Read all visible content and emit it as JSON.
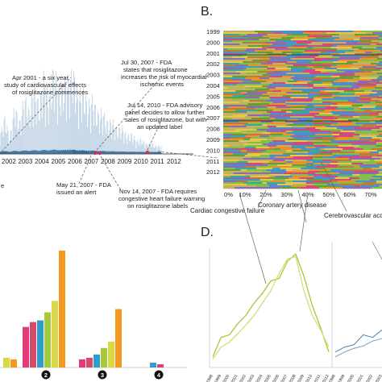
{
  "panels": {
    "b_letter": "B.",
    "d_letter": "D."
  },
  "chart_data": [
    {
      "panel": "A",
      "type": "bar",
      "title": "",
      "x_years": [
        "2002",
        "2003",
        "2004",
        "2005",
        "2006",
        "2007",
        "2008",
        "2009",
        "2010",
        "2011",
        "2012"
      ],
      "annotations": [
        {
          "id": "apr2001",
          "lines": [
            "Apr 2001 - a six year",
            "study of cardiovascular effects",
            "of rosiglitazone commences"
          ]
        },
        {
          "id": "jul2007",
          "lines": [
            "Jul 30, 2007 - FDA",
            "states that rosiglitazone",
            "increases the risk of myocardial",
            "ischemic events"
          ]
        },
        {
          "id": "jul2010",
          "lines": [
            "Jul 14, 2010 - FDA advisory",
            "panel decides to allow further",
            "sales of rosiglitazone, but with",
            "an updated label"
          ]
        },
        {
          "id": "may2007",
          "lines": [
            "May 21, 2007 - FDA",
            "issued an alert"
          ]
        },
        {
          "id": "nov2007",
          "lines": [
            "Nov 14, 2007 - FDA requires",
            "congestive heart failure warning",
            "on rosiglitazone labels"
          ]
        }
      ],
      "peak_values": [
        0.18,
        0.33,
        0.15,
        0.43,
        0.28,
        0.52,
        0.38,
        0.62,
        0.43,
        0.7,
        0.48,
        0.78,
        0.56,
        0.62,
        0.66,
        0.73,
        0.52,
        0.58,
        0.44,
        0.5,
        0.36,
        0.38,
        0.28,
        0.3,
        0.22,
        0.24,
        0.16,
        0.18,
        0.12,
        0.13,
        0.09,
        0.1,
        0.07,
        0.07
      ],
      "colors": {
        "spikes": "#c3d5e6",
        "base": "#2f6d9c",
        "marker": "#c8325a"
      }
    },
    {
      "panel": "B",
      "type": "area",
      "title": "",
      "years": [
        "1999",
        "2000",
        "2001",
        "2002",
        "2003",
        "2004",
        "2005",
        "2006",
        "2007",
        "2008",
        "2009",
        "2010",
        "2011",
        "2012"
      ],
      "x_ticks": [
        "0%",
        "10%",
        "20%",
        "30%",
        "40%",
        "50%",
        "60%",
        "70%"
      ],
      "series_labels": [
        "Cardiac congestive failure",
        "Coronary artery disease",
        "Cerebrovascular accid"
      ],
      "colors": [
        "#c2b25e",
        "#7fbf4a",
        "#e8932f",
        "#4f8fc8",
        "#d24a79",
        "#6a9b3a",
        "#e3c84f",
        "#8b6cb0",
        "#c07a3a",
        "#3aa7a0"
      ]
    },
    {
      "panel": "C",
      "type": "bar",
      "title": "",
      "groups": [
        {
          "label": "",
          "values": [
            0.06,
            0.05
          ]
        },
        {
          "label": "2",
          "values": [
            0.25,
            0.28,
            0.29,
            0.34,
            0.41,
            0.72
          ]
        },
        {
          "label": "3",
          "values": [
            0.05,
            0.06,
            0.08,
            0.12,
            0.16,
            0.36
          ]
        },
        {
          "label": "4",
          "values": [
            0.03,
            0.02
          ]
        }
      ],
      "colors": [
        "#e23b7a",
        "#d84a6a",
        "#2f9cc9",
        "#a4c93a",
        "#d8d84a",
        "#f39a1e"
      ]
    },
    {
      "panel": "D",
      "type": "line",
      "title": "",
      "x": [
        "1998",
        "1999",
        "2000",
        "2001",
        "2002",
        "2003",
        "2004",
        "2005",
        "2006",
        "2007",
        "2008",
        "2009",
        "2010",
        "2011",
        "2012"
      ],
      "x_right": [
        "1998",
        "1999",
        "2000",
        "2001",
        "2002",
        "2003"
      ],
      "series_left": [
        {
          "values": [
            0.06,
            0.22,
            0.24,
            0.33,
            0.4,
            0.5,
            0.58,
            0.68,
            0.7,
            0.84,
            0.9,
            0.72,
            0.48,
            0.3,
            0.1
          ]
        },
        {
          "values": [
            0.04,
            0.14,
            0.18,
            0.25,
            0.32,
            0.4,
            0.5,
            0.6,
            0.74,
            0.86,
            0.88,
            0.6,
            0.4,
            0.28,
            0.14
          ]
        }
      ],
      "series_right": [
        {
          "values": [
            0.1,
            0.14,
            0.16,
            0.24,
            0.22,
            0.28
          ]
        },
        {
          "values": [
            0.06,
            0.1,
            0.13,
            0.15,
            0.19,
            0.21
          ]
        }
      ],
      "colors": [
        "#a8c73a",
        "#cfe07a",
        "#5c8fb8",
        "#7fa9c9"
      ]
    }
  ]
}
